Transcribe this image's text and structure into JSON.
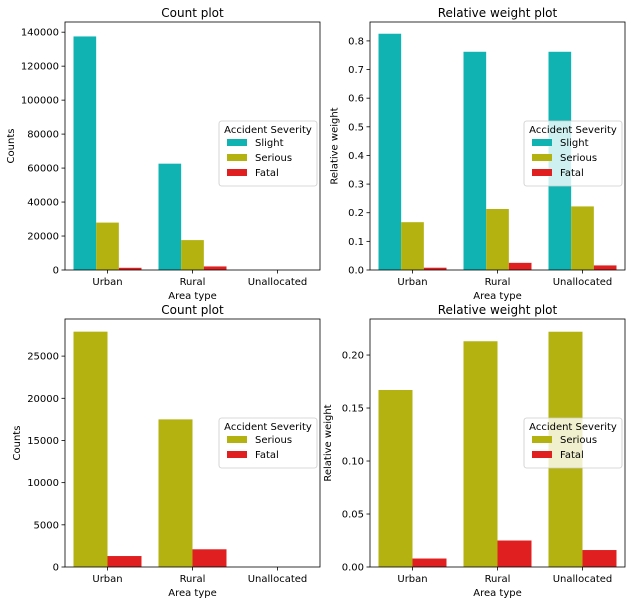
{
  "colors": {
    "Slight": "#11b3b2",
    "Serious": "#b3b210",
    "Fatal": "#e02020"
  },
  "chart_data": [
    {
      "type": "bar",
      "title": "Count plot",
      "xlabel": "Area type",
      "ylabel": "Counts",
      "categories": [
        "Urban",
        "Rural",
        "Unallocated"
      ],
      "series": [
        {
          "name": "Slight",
          "values": [
            137500,
            62600,
            0
          ]
        },
        {
          "name": "Serious",
          "values": [
            27900,
            17600,
            0
          ]
        },
        {
          "name": "Fatal",
          "values": [
            1300,
            2100,
            0
          ]
        }
      ],
      "ylim": [
        0,
        146000
      ],
      "yticks": [
        0,
        20000,
        40000,
        60000,
        80000,
        100000,
        120000,
        140000
      ],
      "ytick_labels": [
        "0",
        "20000",
        "40000",
        "60000",
        "80000",
        "100000",
        "120000",
        "140000"
      ],
      "legend_title": "Accident Severity",
      "legend_position": "center-right",
      "grid": false
    },
    {
      "type": "bar",
      "title": "Relative weight plot",
      "xlabel": "Area type",
      "ylabel": "Relative weight",
      "categories": [
        "Urban",
        "Rural",
        "Unallocated"
      ],
      "series": [
        {
          "name": "Slight",
          "values": [
            0.825,
            0.762,
            0.762
          ]
        },
        {
          "name": "Serious",
          "values": [
            0.167,
            0.213,
            0.222
          ]
        },
        {
          "name": "Fatal",
          "values": [
            0.008,
            0.025,
            0.016
          ]
        }
      ],
      "ylim": [
        0,
        0.866
      ],
      "yticks": [
        0,
        0.1,
        0.2,
        0.3,
        0.4,
        0.5,
        0.6,
        0.7,
        0.8
      ],
      "ytick_labels": [
        "0.0",
        "0.1",
        "0.2",
        "0.3",
        "0.4",
        "0.5",
        "0.6",
        "0.7",
        "0.8"
      ],
      "legend_title": "Accident Severity",
      "legend_position": "center-right",
      "grid": false
    },
    {
      "type": "bar",
      "title": "Count plot",
      "xlabel": "Area type",
      "ylabel": "Counts",
      "categories": [
        "Urban",
        "Rural",
        "Unallocated"
      ],
      "series": [
        {
          "name": "Serious",
          "values": [
            27900,
            17500,
            0
          ]
        },
        {
          "name": "Fatal",
          "values": [
            1300,
            2100,
            0
          ]
        }
      ],
      "ylim": [
        0,
        29400
      ],
      "yticks": [
        0,
        5000,
        10000,
        15000,
        20000,
        25000
      ],
      "ytick_labels": [
        "0",
        "5000",
        "10000",
        "15000",
        "20000",
        "25000"
      ],
      "legend_title": "Accident Severity",
      "legend_position": "center-right",
      "grid": false
    },
    {
      "type": "bar",
      "title": "Relative weight plot",
      "xlabel": "Area type",
      "ylabel": "Relative weight",
      "categories": [
        "Urban",
        "Rural",
        "Unallocated"
      ],
      "series": [
        {
          "name": "Serious",
          "values": [
            0.167,
            0.213,
            0.222
          ]
        },
        {
          "name": "Fatal",
          "values": [
            0.008,
            0.025,
            0.016
          ]
        }
      ],
      "ylim": [
        0,
        0.234
      ],
      "yticks": [
        0,
        0.05,
        0.1,
        0.15,
        0.2
      ],
      "ytick_labels": [
        "0.00",
        "0.05",
        "0.10",
        "0.15",
        "0.20"
      ],
      "legend_title": "Accident Severity",
      "legend_position": "center-right",
      "grid": false
    }
  ]
}
